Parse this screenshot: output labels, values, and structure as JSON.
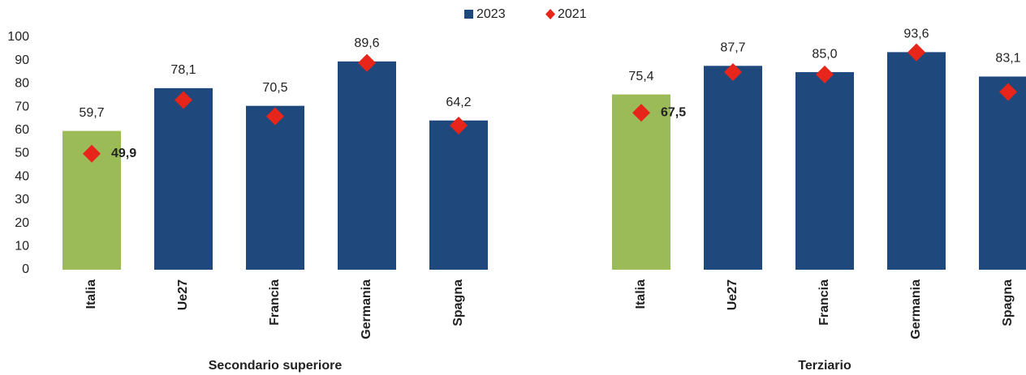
{
  "chart_data": {
    "type": "bar",
    "ylim": [
      0,
      100
    ],
    "yticks": [
      0,
      10,
      20,
      30,
      40,
      50,
      60,
      70,
      80,
      90,
      100
    ],
    "grid": false,
    "legend": "top",
    "legend_items": [
      {
        "name": "2023",
        "color": "#1f497d",
        "marker": "square"
      },
      {
        "name": "2021",
        "color": "#e8251a",
        "marker": "diamond"
      }
    ],
    "panels": [
      {
        "label": "Secondario superiore",
        "categories": [
          "Italia",
          "Ue27",
          "Francia",
          "Germania",
          "Spagna"
        ],
        "series": [
          {
            "name": "2023",
            "mark": "bar",
            "color": "#1f497d",
            "point_colors": [
              "#9bbb59",
              "#1f497d",
              "#1f497d",
              "#1f497d",
              "#1f497d"
            ],
            "values": [
              59.7,
              78.1,
              70.5,
              89.6,
              64.2
            ],
            "value_labels": [
              "59,7",
              "78,1",
              "70,5",
              "89,6",
              "64,2"
            ]
          },
          {
            "name": "2021",
            "mark": "diamond",
            "color": "#e8251a",
            "values": [
              49.9,
              73,
              66,
              89,
              62
            ],
            "value_labels": [
              "49,9",
              null,
              null,
              null,
              null
            ]
          }
        ]
      },
      {
        "label": "Terziario",
        "categories": [
          "Italia",
          "Ue27",
          "Francia",
          "Germania",
          "Spagna"
        ],
        "series": [
          {
            "name": "2023",
            "mark": "bar",
            "color": "#1f497d",
            "point_colors": [
              "#9bbb59",
              "#1f497d",
              "#1f497d",
              "#1f497d",
              "#1f497d"
            ],
            "values": [
              75.4,
              87.7,
              85.0,
              93.6,
              83.1
            ],
            "value_labels": [
              "75,4",
              "87,7",
              "85,0",
              "93,6",
              "83,1"
            ]
          },
          {
            "name": "2021",
            "mark": "diamond",
            "color": "#e8251a",
            "values": [
              67.5,
              85,
              84,
              93.5,
              76.5
            ],
            "value_labels": [
              "67,5",
              null,
              null,
              null,
              null
            ]
          }
        ]
      }
    ]
  }
}
